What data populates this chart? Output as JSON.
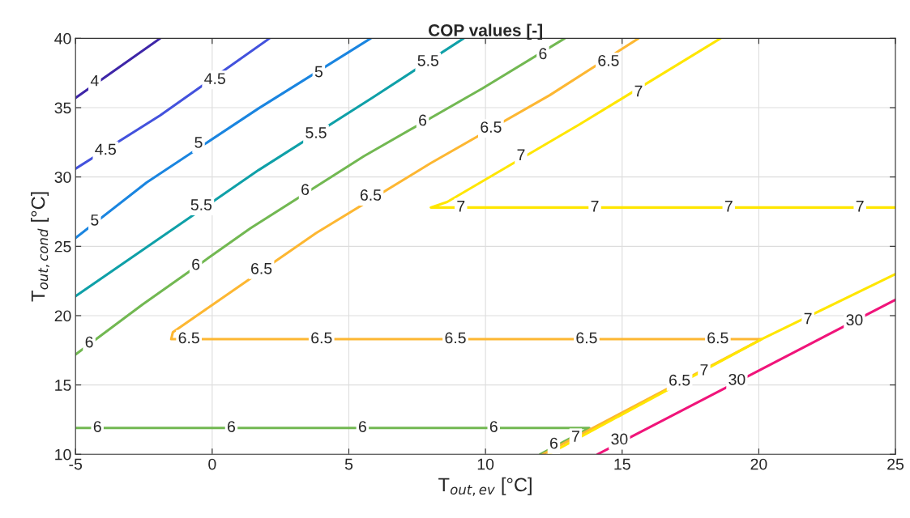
{
  "chart_data": {
    "type": "line",
    "title": "COP values [-]",
    "xlabel": "T$_{out,ev}$ [°C]",
    "ylabel": "T$_{out,cond}$ [°C]",
    "xlim": [
      -5,
      25
    ],
    "ylim": [
      10,
      40
    ],
    "xticks": [
      -5,
      0,
      5,
      10,
      15,
      20,
      25
    ],
    "yticks": [
      10,
      15,
      20,
      25,
      30,
      35,
      40
    ],
    "grid": true,
    "line_style": "solid",
    "series": [
      {
        "color": "#3e26a8",
        "x": [
          -5,
          -1.9
        ],
        "values": [
          35.7,
          40
        ]
      },
      {
        "color": "#4352dd",
        "x": [
          -5,
          -1.9,
          2.1
        ],
        "values": [
          30.6,
          34.45,
          40
        ]
      },
      {
        "color": "#1a85e0",
        "x": [
          -5,
          -2.4,
          1.7,
          5.8
        ],
        "values": [
          25.6,
          29.6,
          34.95,
          40
        ]
      },
      {
        "color": "#0fa0a8",
        "x": [
          -5,
          1.7,
          5.85,
          9.2
        ],
        "values": [
          21.4,
          30.5,
          35.7,
          40
        ]
      },
      {
        "color": "#72b852",
        "x": [
          -5,
          -2.55,
          1.4,
          5.55,
          9.9,
          12.9
        ],
        "values": [
          17.2,
          20.8,
          26.3,
          31.5,
          36.4,
          40
        ]
      },
      {
        "color": "#72b852",
        "x": [
          -5,
          13.8,
          12.0
        ],
        "values": [
          11.9,
          11.9,
          10
        ]
      },
      {
        "color": "#fdb732",
        "x": [
          15.6,
          12.35,
          8.0,
          3.8,
          -0.05,
          -1.44,
          -1.5,
          20.1,
          12.1
        ],
        "values": [
          40,
          35.9,
          31.0,
          25.95,
          20.7,
          18.8,
          18.3,
          18.3,
          10
        ]
      },
      {
        "color": "#ffe600",
        "x": [
          18.6,
          13.45,
          8.6,
          8.0,
          25
        ],
        "values": [
          40,
          33.8,
          28.2,
          27.8,
          27.8
        ]
      },
      {
        "color": "#ffe600",
        "x": [
          12.3,
          20.1,
          25
        ],
        "values": [
          10,
          18.3,
          23.0
        ]
      },
      {
        "color": "#f0147a",
        "x": [
          14.1,
          25
        ],
        "values": [
          10,
          21.15
        ]
      }
    ],
    "annotations": [
      {
        "text": "4",
        "x": -4.3,
        "y": 36.85
      },
      {
        "text": "4.5",
        "x": -3.9,
        "y": 31.9
      },
      {
        "text": "4.5",
        "x": 0.1,
        "y": 37.0
      },
      {
        "text": "5",
        "x": -4.3,
        "y": 26.8
      },
      {
        "text": "5",
        "x": -0.5,
        "y": 32.4
      },
      {
        "text": "5",
        "x": 3.9,
        "y": 37.5
      },
      {
        "text": "5.5",
        "x": -0.4,
        "y": 27.9
      },
      {
        "text": "5.5",
        "x": 3.8,
        "y": 33.1
      },
      {
        "text": "5.5",
        "x": 7.9,
        "y": 38.3
      },
      {
        "text": "6",
        "x": -4.5,
        "y": 18.0
      },
      {
        "text": "6",
        "x": -0.6,
        "y": 23.6
      },
      {
        "text": "6",
        "x": 3.4,
        "y": 29.0
      },
      {
        "text": "6",
        "x": 7.7,
        "y": 34.0
      },
      {
        "text": "6",
        "x": 12.1,
        "y": 38.8
      },
      {
        "text": "6",
        "x": -4.2,
        "y": 11.9
      },
      {
        "text": "6",
        "x": 0.7,
        "y": 11.9
      },
      {
        "text": "6",
        "x": 5.5,
        "y": 11.9
      },
      {
        "text": "6",
        "x": 10.3,
        "y": 11.9
      },
      {
        "text": "6",
        "x": 12.5,
        "y": 10.7
      },
      {
        "text": "6.5",
        "x": 1.8,
        "y": 23.3
      },
      {
        "text": "6.5",
        "x": 5.8,
        "y": 28.6
      },
      {
        "text": "6.5",
        "x": 10.2,
        "y": 33.5
      },
      {
        "text": "6.5",
        "x": 14.5,
        "y": 38.3
      },
      {
        "text": "6.5",
        "x": -0.85,
        "y": 18.3
      },
      {
        "text": "6.5",
        "x": 4.0,
        "y": 18.3
      },
      {
        "text": "6.5",
        "x": 8.9,
        "y": 18.3
      },
      {
        "text": "6.5",
        "x": 13.7,
        "y": 18.3
      },
      {
        "text": "6.5",
        "x": 18.5,
        "y": 18.3
      },
      {
        "text": "6.5",
        "x": 17.1,
        "y": 15.25
      },
      {
        "text": "7",
        "x": 15.6,
        "y": 36.1
      },
      {
        "text": "7",
        "x": 11.3,
        "y": 31.5
      },
      {
        "text": "7",
        "x": 9.1,
        "y": 27.8
      },
      {
        "text": "7",
        "x": 14.0,
        "y": 27.8
      },
      {
        "text": "7",
        "x": 18.9,
        "y": 27.8
      },
      {
        "text": "7",
        "x": 23.7,
        "y": 27.8
      },
      {
        "text": "7",
        "x": 13.3,
        "y": 11.2
      },
      {
        "text": "7",
        "x": 18.0,
        "y": 16.0
      },
      {
        "text": "7",
        "x": 21.8,
        "y": 19.7
      },
      {
        "text": "30",
        "x": 14.9,
        "y": 11.0
      },
      {
        "text": "30",
        "x": 19.2,
        "y": 15.3
      },
      {
        "text": "30",
        "x": 23.5,
        "y": 19.6
      }
    ]
  }
}
